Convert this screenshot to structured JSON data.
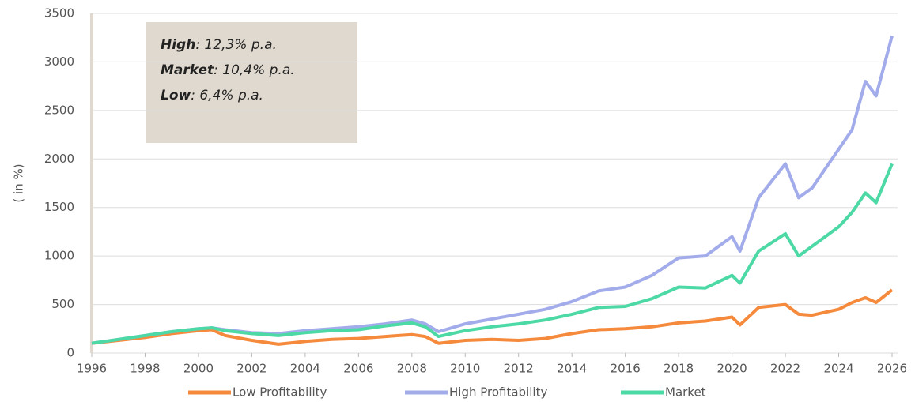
{
  "chart_data": {
    "type": "line",
    "y_label": "( in %)",
    "annotations": [
      {
        "label": "High",
        "text": ": 12,3% p.a."
      },
      {
        "label": "Market",
        "text": ": 10,4% p.a."
      },
      {
        "label": "Low",
        "text": ": 6,4% p.a."
      }
    ],
    "x": [
      1996,
      1997,
      1998,
      1999,
      2000,
      2000.5,
      2001,
      2002,
      2003,
      2004,
      2005,
      2006,
      2007,
      2008,
      2008.5,
      2009,
      2010,
      2011,
      2012,
      2013,
      2014,
      2015,
      2016,
      2017,
      2018,
      2019,
      2020,
      2020.3,
      2021,
      2022,
      2022.5,
      2023,
      2024,
      2024.5,
      2025,
      2025.4,
      2026
    ],
    "series": [
      {
        "name": "Low Profitability",
        "color": "#f58a3c",
        "values": [
          100,
          130,
          160,
          200,
          230,
          240,
          180,
          130,
          90,
          120,
          140,
          150,
          170,
          190,
          170,
          100,
          130,
          140,
          130,
          150,
          200,
          240,
          250,
          270,
          310,
          330,
          370,
          290,
          470,
          500,
          400,
          390,
          450,
          520,
          570,
          520,
          650
        ]
      },
      {
        "name": "High Profitability",
        "color": "#a3acea",
        "values": [
          100,
          140,
          180,
          220,
          250,
          260,
          240,
          210,
          200,
          230,
          250,
          270,
          300,
          340,
          300,
          220,
          300,
          350,
          400,
          450,
          530,
          640,
          680,
          800,
          980,
          1000,
          1200,
          1050,
          1600,
          1950,
          1600,
          1700,
          2100,
          2300,
          2800,
          2650,
          3270
        ]
      },
      {
        "name": "Market",
        "color": "#4dd9a6",
        "values": [
          100,
          140,
          180,
          220,
          250,
          260,
          230,
          200,
          180,
          210,
          230,
          240,
          280,
          310,
          270,
          170,
          230,
          270,
          300,
          340,
          400,
          470,
          480,
          560,
          680,
          670,
          800,
          720,
          1050,
          1230,
          1000,
          1100,
          1300,
          1450,
          1650,
          1550,
          1950
        ]
      }
    ],
    "xlim": [
      1996,
      2026
    ],
    "xticks": [
      1996,
      1998,
      2000,
      2002,
      2004,
      2006,
      2008,
      2010,
      2012,
      2014,
      2016,
      2018,
      2020,
      2022,
      2024,
      2026
    ],
    "ylim": [
      0,
      3500
    ],
    "yticks": [
      0,
      500,
      1000,
      1500,
      2000,
      2500,
      3000,
      3500
    ],
    "grid": true
  }
}
